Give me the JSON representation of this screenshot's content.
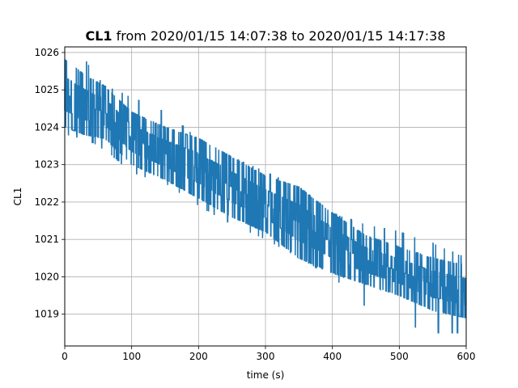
{
  "chart_data": {
    "type": "line",
    "title_bold": "CL1",
    "title_rest": " from 2020/01/15 14:07:38 to 2020/01/15 14:17:38",
    "xlabel": "time (s)",
    "ylabel": "CL1",
    "xlim": [
      0,
      600
    ],
    "ylim": [
      1018.15,
      1026.15
    ],
    "x_ticks": [
      0,
      100,
      200,
      300,
      400,
      500,
      600
    ],
    "y_ticks": [
      1019,
      1020,
      1021,
      1022,
      1023,
      1024,
      1025,
      1026
    ],
    "grid": true,
    "series": [
      {
        "color": "#1f77b4",
        "band": [
          {
            "x": 0,
            "low": 1024.0,
            "high": 1025.8,
            "min_spike": 1023.8,
            "max_spike": 1025.8
          },
          {
            "x": 30,
            "low": 1023.8,
            "high": 1025.4,
            "min_spike": 1023.7,
            "max_spike": 1025.8
          },
          {
            "x": 60,
            "low": 1023.7,
            "high": 1025.1,
            "min_spike": 1023.4,
            "max_spike": 1025.1
          },
          {
            "x": 100,
            "low": 1023.0,
            "high": 1024.4,
            "min_spike": 1022.8,
            "max_spike": 1024.8
          },
          {
            "x": 150,
            "low": 1022.6,
            "high": 1024.0,
            "min_spike": 1022.5,
            "max_spike": 1024.4
          },
          {
            "x": 200,
            "low": 1022.1,
            "high": 1023.7,
            "min_spike": 1021.9,
            "max_spike": 1023.7
          },
          {
            "x": 250,
            "low": 1021.6,
            "high": 1023.2,
            "min_spike": 1021.4,
            "max_spike": 1023.2
          },
          {
            "x": 300,
            "low": 1021.2,
            "high": 1022.7,
            "min_spike": 1021.0,
            "max_spike": 1022.8
          },
          {
            "x": 350,
            "low": 1020.5,
            "high": 1022.4,
            "min_spike": 1020.5,
            "max_spike": 1022.4
          },
          {
            "x": 400,
            "low": 1020.1,
            "high": 1021.7,
            "min_spike": 1020.0,
            "max_spike": 1021.7
          },
          {
            "x": 450,
            "low": 1019.8,
            "high": 1021.1,
            "min_spike": 1019.2,
            "max_spike": 1021.4
          },
          {
            "x": 500,
            "low": 1019.5,
            "high": 1020.8,
            "min_spike": 1018.8,
            "max_spike": 1021.2
          },
          {
            "x": 550,
            "low": 1019.1,
            "high": 1020.5,
            "min_spike": 1018.5,
            "max_spike": 1020.9
          },
          {
            "x": 600,
            "low": 1018.9,
            "high": 1020.3,
            "min_spike": 1018.5,
            "max_spike": 1020.5
          }
        ]
      }
    ]
  }
}
